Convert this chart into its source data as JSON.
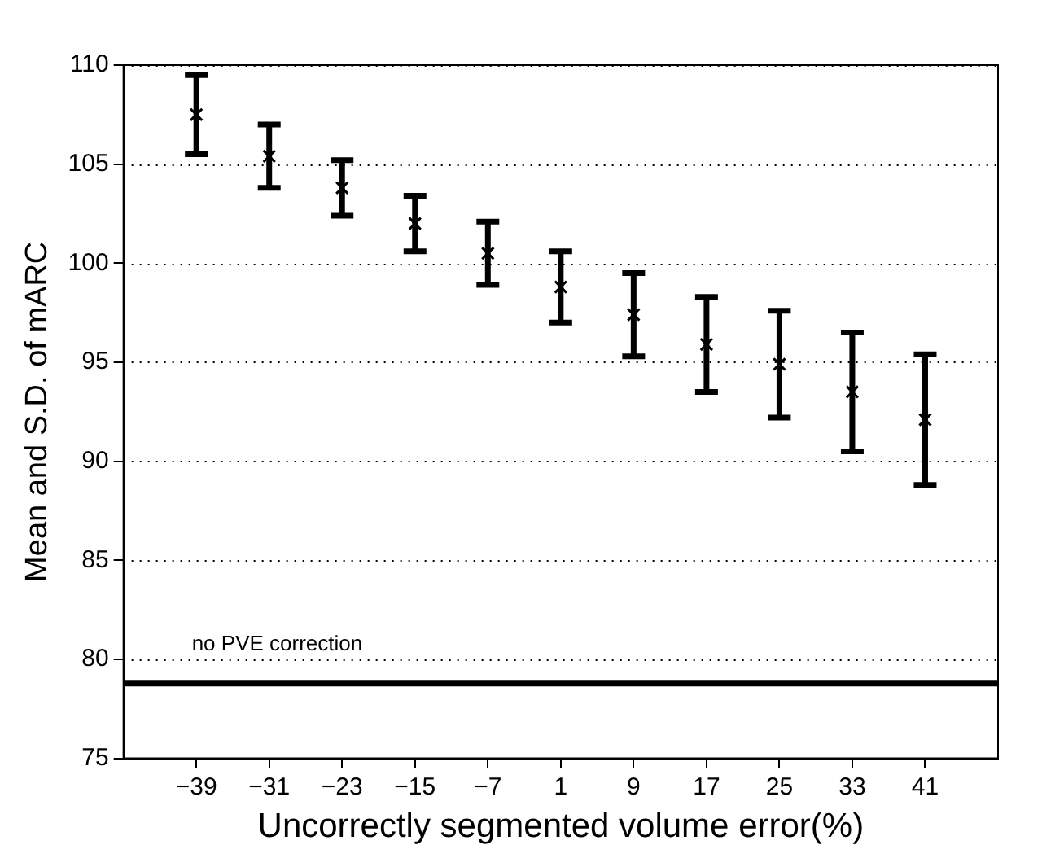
{
  "chart_data": {
    "type": "scatter",
    "xlabel": "Uncorrectly segmented volume error(%)",
    "ylabel": "Mean and S.D. of mARC",
    "x": [
      -39,
      -31,
      -23,
      -15,
      -7,
      1,
      9,
      17,
      25,
      33,
      41
    ],
    "series": [
      {
        "color": "#000000",
        "values": [
          107.5,
          105.4,
          103.8,
          102.0,
          100.5,
          98.8,
          97.4,
          95.9,
          94.9,
          93.5,
          92.1
        ],
        "errors": [
          2.0,
          1.6,
          1.4,
          1.4,
          1.6,
          1.8,
          2.1,
          2.4,
          2.7,
          3.0,
          3.3
        ]
      }
    ],
    "xlim": [
      -47,
      49
    ],
    "xticks": [
      -39,
      -31,
      -23,
      -15,
      -7,
      1,
      9,
      17,
      25,
      33,
      41
    ],
    "ylim": [
      75,
      110
    ],
    "yticks": [
      75,
      80,
      85,
      90,
      95,
      100,
      105,
      110
    ],
    "ref_lines": [
      {
        "axis": "y",
        "value": 78.8,
        "label": "no PVE correction",
        "color": "#000000",
        "line_style": "solid"
      }
    ],
    "grid": "y",
    "legend": false,
    "marker": "cross"
  }
}
